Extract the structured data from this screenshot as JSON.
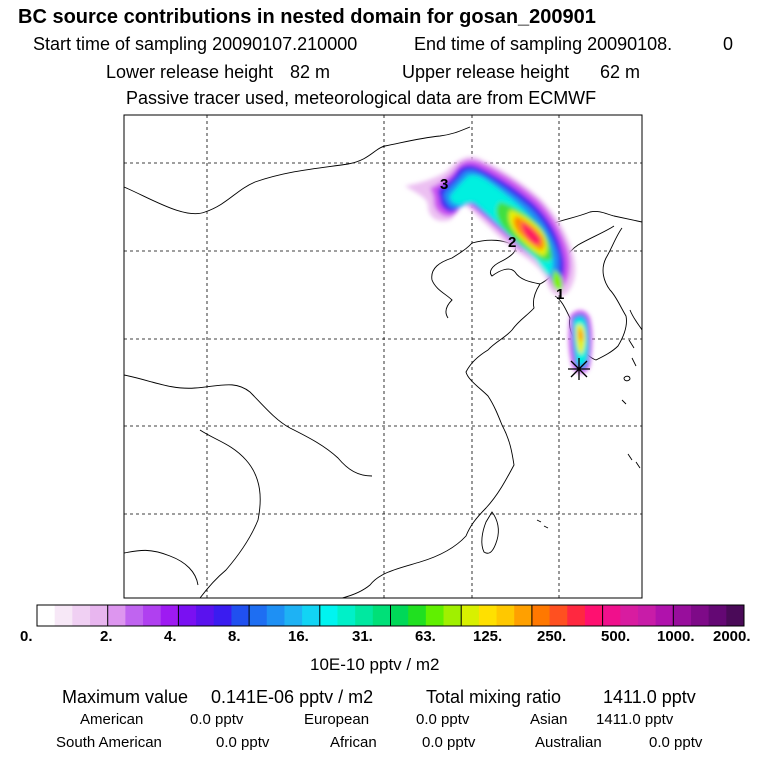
{
  "header": {
    "title": "BC  source contributions in nested domain for gosan_200901",
    "start_label": "Start time of sampling 20090107.210000",
    "end_label": "End time of sampling 20090108.",
    "end_suffix": "0",
    "lower_label": "Lower release height",
    "lower_value": "82 m",
    "upper_label": "Upper release height",
    "upper_value": "62 m",
    "tracer_note": "Passive tracer used, meteorological data are from ECMWF"
  },
  "map": {
    "markers": [
      "1",
      "2",
      "3"
    ],
    "receptor_symbol": "✳"
  },
  "colorbar": {
    "colors": [
      "#ffffff",
      "#f7e8f7",
      "#f0d0f3",
      "#e8b6ef",
      "#dd96ef",
      "#c064f0",
      "#b040f0",
      "#9e1af2",
      "#7a10f2",
      "#5a12ee",
      "#3a1cf0",
      "#2050f0",
      "#1e6ef2",
      "#1e90f4",
      "#1eb2f4",
      "#12d4f4",
      "#00f4f0",
      "#00f0c8",
      "#00e8a0",
      "#00e078",
      "#00d858",
      "#20e020",
      "#60f000",
      "#a0f000",
      "#d8f000",
      "#ffe000",
      "#ffc800",
      "#ffa000",
      "#ff7800",
      "#ff5020",
      "#ff2840",
      "#ff1070",
      "#f0108c",
      "#d81ca0",
      "#c81ca8",
      "#b012ac",
      "#980e9c",
      "#7e0a88",
      "#640874",
      "#4a0a58"
    ],
    "ticks": [
      "0.",
      "2.",
      "4.",
      "8.",
      "16.",
      "31.",
      "63.",
      "125.",
      "250.",
      "500.",
      "1000.",
      "2000."
    ],
    "unit_label": "10E-10 pptv / m2"
  },
  "summary": {
    "max_label": "Maximum value",
    "max_value": "0.141E-06 pptv / m2",
    "total_label": "Total mixing ratio",
    "total_value": "1411.0 pptv",
    "regions": [
      {
        "name": "American",
        "value": "0.0 pptv"
      },
      {
        "name": "European",
        "value": "0.0 pptv"
      },
      {
        "name": "Asian",
        "value": "1411.0 pptv"
      },
      {
        "name": "South American",
        "value": "0.0 pptv"
      },
      {
        "name": "African",
        "value": "0.0 pptv"
      },
      {
        "name": "Australian",
        "value": "0.0 pptv"
      }
    ]
  }
}
